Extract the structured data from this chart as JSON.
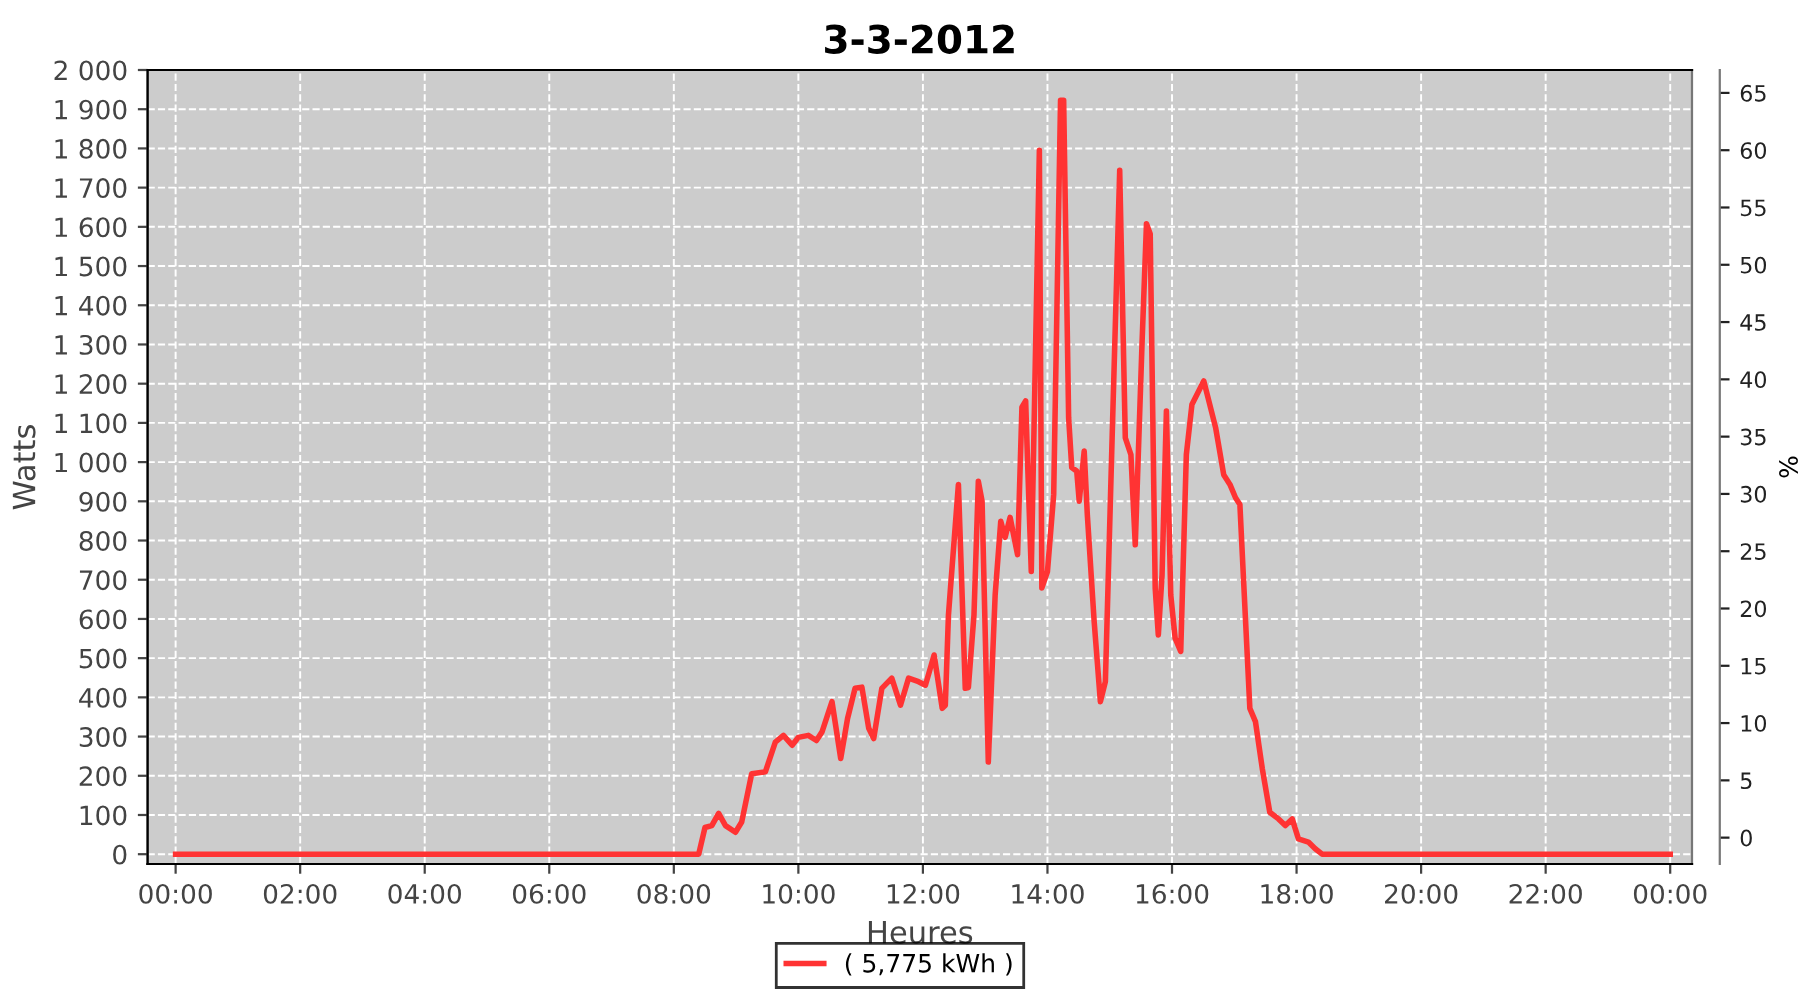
{
  "chart_data": {
    "type": "line",
    "title": "3-3-2012",
    "xlabel": "Heures",
    "ylabel": "Watts",
    "y2label": "%",
    "xlim": [
      -0.45,
      24.35
    ],
    "ylim": [
      -25,
      2000
    ],
    "y2lim": [
      -2.3,
      67
    ],
    "xticks": [
      {
        "value": 0,
        "label": "00:00"
      },
      {
        "value": 2,
        "label": "02:00"
      },
      {
        "value": 4,
        "label": "04:00"
      },
      {
        "value": 6,
        "label": "06:00"
      },
      {
        "value": 8,
        "label": "08:00"
      },
      {
        "value": 10,
        "label": "10:00"
      },
      {
        "value": 12,
        "label": "12:00"
      },
      {
        "value": 14,
        "label": "14:00"
      },
      {
        "value": 16,
        "label": "16:00"
      },
      {
        "value": 18,
        "label": "18:00"
      },
      {
        "value": 20,
        "label": "20:00"
      },
      {
        "value": 22,
        "label": "22:00"
      },
      {
        "value": 24,
        "label": "00:00"
      }
    ],
    "yticks": [
      0,
      100,
      200,
      300,
      400,
      500,
      600,
      700,
      800,
      900,
      {
        "value": 1000,
        "label": "1 000"
      },
      {
        "value": 1100,
        "label": "1 100"
      },
      {
        "value": 1200,
        "label": "1 200"
      },
      {
        "value": 1300,
        "label": "1 300"
      },
      {
        "value": 1400,
        "label": "1 400"
      },
      {
        "value": 1500,
        "label": "1 500"
      },
      {
        "value": 1600,
        "label": "1 600"
      },
      {
        "value": 1700,
        "label": "1 700"
      },
      {
        "value": 1800,
        "label": "1 800"
      },
      {
        "value": 1900,
        "label": "1 900"
      },
      {
        "value": 2000,
        "label": "2 000"
      }
    ],
    "y2ticks": [
      0,
      5,
      10,
      15,
      20,
      25,
      30,
      35,
      40,
      45,
      50,
      55,
      60,
      65
    ],
    "grid": true,
    "legend": "bottom",
    "series": [
      {
        "name": "( 5,775 kWh )",
        "color": "#ff3333",
        "x": [
          0,
          8.4,
          8.5,
          8.61,
          8.72,
          8.83,
          8.99,
          9.09,
          9.25,
          9.47,
          9.63,
          9.76,
          9.9,
          10.0,
          10.16,
          10.29,
          10.38,
          10.54,
          10.68,
          10.79,
          10.91,
          11.02,
          11.13,
          11.21,
          11.34,
          11.5,
          11.64,
          11.77,
          11.93,
          12.04,
          12.18,
          12.31,
          12.36,
          12.41,
          12.57,
          12.68,
          12.73,
          12.82,
          12.89,
          12.95,
          13.05,
          13.16,
          13.25,
          13.32,
          13.4,
          13.52,
          13.59,
          13.65,
          13.68,
          13.74,
          13.87,
          13.91,
          14.0,
          14.1,
          14.21,
          14.26,
          14.34,
          14.39,
          14.47,
          14.51,
          14.59,
          14.64,
          14.75,
          14.85,
          14.93,
          15.04,
          15.16,
          15.25,
          15.34,
          15.41,
          15.52,
          15.59,
          15.65,
          15.73,
          15.78,
          15.84,
          15.91,
          15.98,
          16.05,
          16.14,
          16.23,
          16.32,
          16.51,
          16.7,
          16.83,
          16.93,
          17.02,
          17.09,
          17.15,
          17.25,
          17.34,
          17.45,
          17.57,
          17.71,
          17.82,
          17.93,
          18.03,
          18.19,
          18.3,
          18.41,
          24
        ],
        "values": [
          0,
          0,
          68,
          73,
          104,
          73,
          56,
          82,
          205,
          210,
          286,
          303,
          278,
          298,
          303,
          290,
          312,
          389,
          244,
          346,
          423,
          426,
          321,
          295,
          423,
          449,
          380,
          449,
          440,
          431,
          508,
          372,
          380,
          610,
          943,
          423,
          425,
          610,
          951,
          900,
          235,
          661,
          849,
          808,
          859,
          764,
          1140,
          1156,
          1003,
          721,
          1795,
          679,
          721,
          917,
          1923,
          1923,
          1113,
          986,
          977,
          900,
          1028,
          866,
          593,
          389,
          440,
          1071,
          1744,
          1062,
          1019,
          789,
          1309,
          1608,
          1582,
          679,
          559,
          712,
          1130,
          661,
          551,
          517,
          1019,
          1147,
          1207,
          1088,
          968,
          943,
          909,
          892,
          696,
          372,
          338,
          218,
          107,
          90,
          73,
          90,
          39,
          31,
          14,
          0,
          0
        ]
      }
    ]
  }
}
